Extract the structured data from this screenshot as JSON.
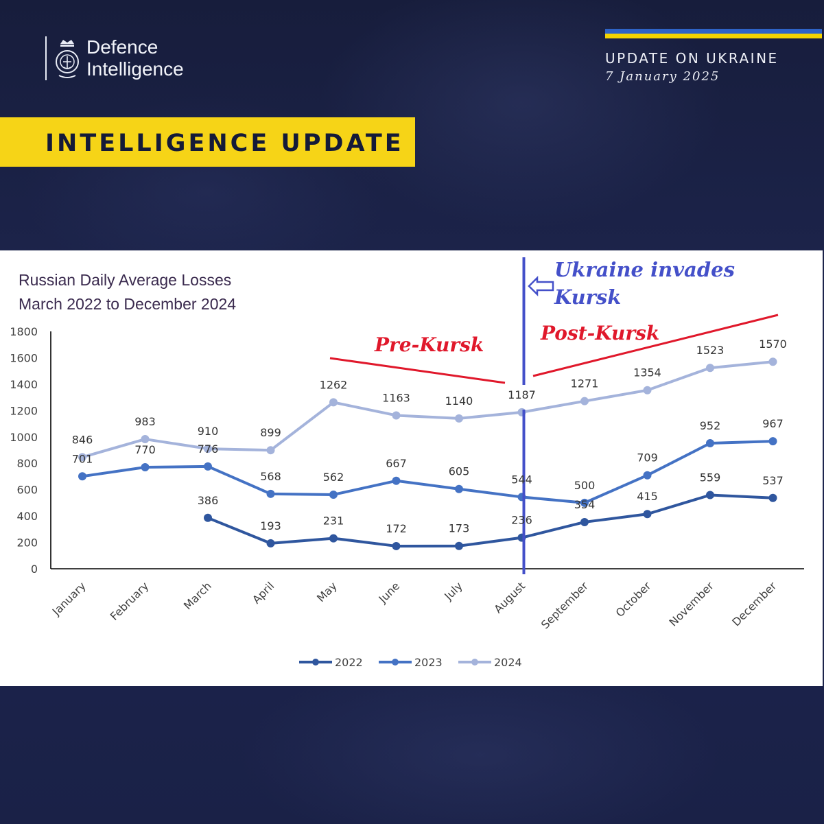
{
  "header": {
    "brand_line1": "Defence",
    "brand_line2": "Intelligence",
    "update_title": "UPDATE ON UKRAINE",
    "update_date": "7 January 2025",
    "banner": "INTELLIGENCE UPDATE",
    "flag_colors": [
      "#2e63c6",
      "#f4d400"
    ]
  },
  "chart_data": {
    "type": "line",
    "title_line1": "Russian Daily Average Losses",
    "title_line2": "March 2022 to December 2024",
    "categories": [
      "January",
      "February",
      "March",
      "April",
      "May",
      "June",
      "July",
      "August",
      "September",
      "October",
      "November",
      "December"
    ],
    "ylim": [
      0,
      1800
    ],
    "yticks": [
      0,
      200,
      400,
      600,
      800,
      1000,
      1200,
      1400,
      1600,
      1800
    ],
    "grid": false,
    "legend_position": "bottom",
    "series": [
      {
        "name": "2022",
        "color": "#2f569e",
        "values": [
          null,
          null,
          386,
          193,
          231,
          172,
          173,
          236,
          354,
          415,
          559,
          537
        ]
      },
      {
        "name": "2023",
        "color": "#4472c4",
        "values": [
          701,
          770,
          776,
          568,
          562,
          667,
          605,
          544,
          500,
          709,
          952,
          967
        ]
      },
      {
        "name": "2024",
        "color": "#a4b3db",
        "values": [
          846,
          983,
          910,
          899,
          1262,
          1163,
          1140,
          1187,
          1271,
          1354,
          1523,
          1570
        ]
      }
    ],
    "annotations": {
      "invasion_line1": "Ukraine invades",
      "invasion_line2": "Kursk",
      "pre_label": "Pre-Kursk",
      "post_label": "Post-Kursk",
      "invasion_month": "August",
      "annotation_blue": "#4450c9",
      "annotation_red": "#e0182b"
    }
  }
}
